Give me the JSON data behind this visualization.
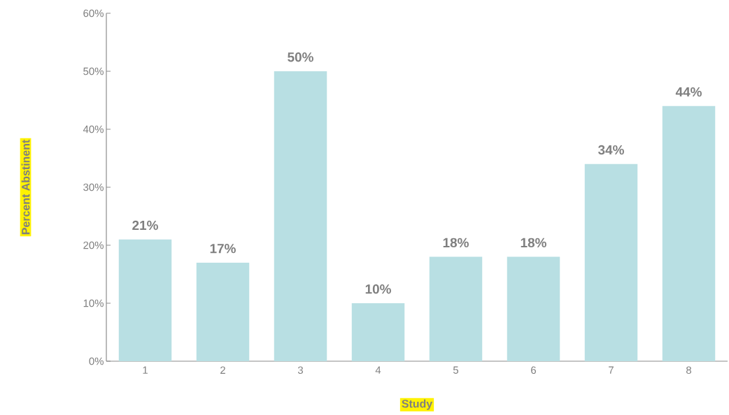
{
  "chart_data": {
    "type": "bar",
    "xlabel": "Study",
    "ylabel": "Percent  Abstinent",
    "categories": [
      "1",
      "2",
      "3",
      "4",
      "5",
      "6",
      "7",
      "8"
    ],
    "values": [
      21,
      17,
      50,
      10,
      18,
      18,
      34,
      44
    ],
    "value_labels": [
      "21%",
      "17%",
      "50%",
      "10%",
      "18%",
      "18%",
      "34%",
      "44%"
    ],
    "color": "#b8dfe3",
    "ylim": [
      0,
      60
    ],
    "yticks": [
      {
        "value": 0,
        "label": "0%"
      },
      {
        "value": 10,
        "label": "10%"
      },
      {
        "value": 20,
        "label": "20%"
      },
      {
        "value": 30,
        "label": "30%"
      },
      {
        "value": 40,
        "label": "40%"
      },
      {
        "value": 50,
        "label": "50%"
      },
      {
        "value": 60,
        "label": "60%"
      }
    ],
    "grid": false
  }
}
